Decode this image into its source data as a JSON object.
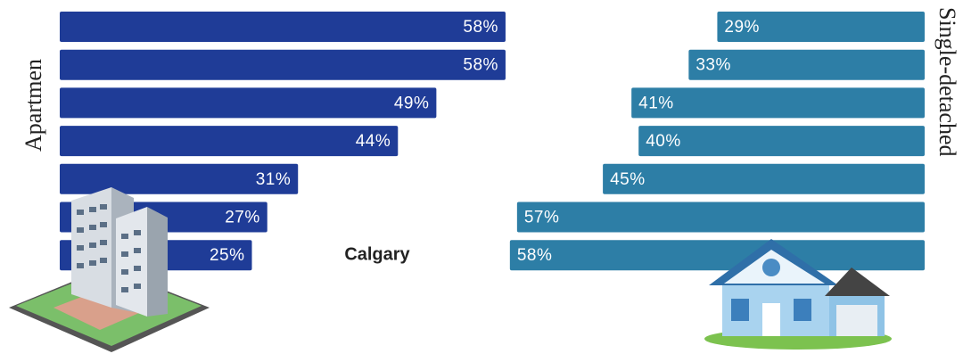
{
  "chart_data": {
    "type": "bar",
    "orientation": "horizontal",
    "categories": [
      null,
      null,
      null,
      null,
      null,
      null,
      "Calgary"
    ],
    "series": [
      {
        "name": "Apartmen",
        "color": "#1f3c97",
        "values": [
          58,
          58,
          49,
          44,
          31,
          27,
          25
        ],
        "value_labels": [
          "58%",
          "58%",
          "49%",
          "44%",
          "31%",
          "27%",
          "25%"
        ]
      },
      {
        "name": "Single-detached",
        "color": "#2d7ea6",
        "values": [
          29,
          33,
          41,
          40,
          45,
          57,
          58
        ],
        "value_labels": [
          "29%",
          "33%",
          "41%",
          "40%",
          "45%",
          "57%",
          "58%"
        ]
      }
    ]
  }
}
